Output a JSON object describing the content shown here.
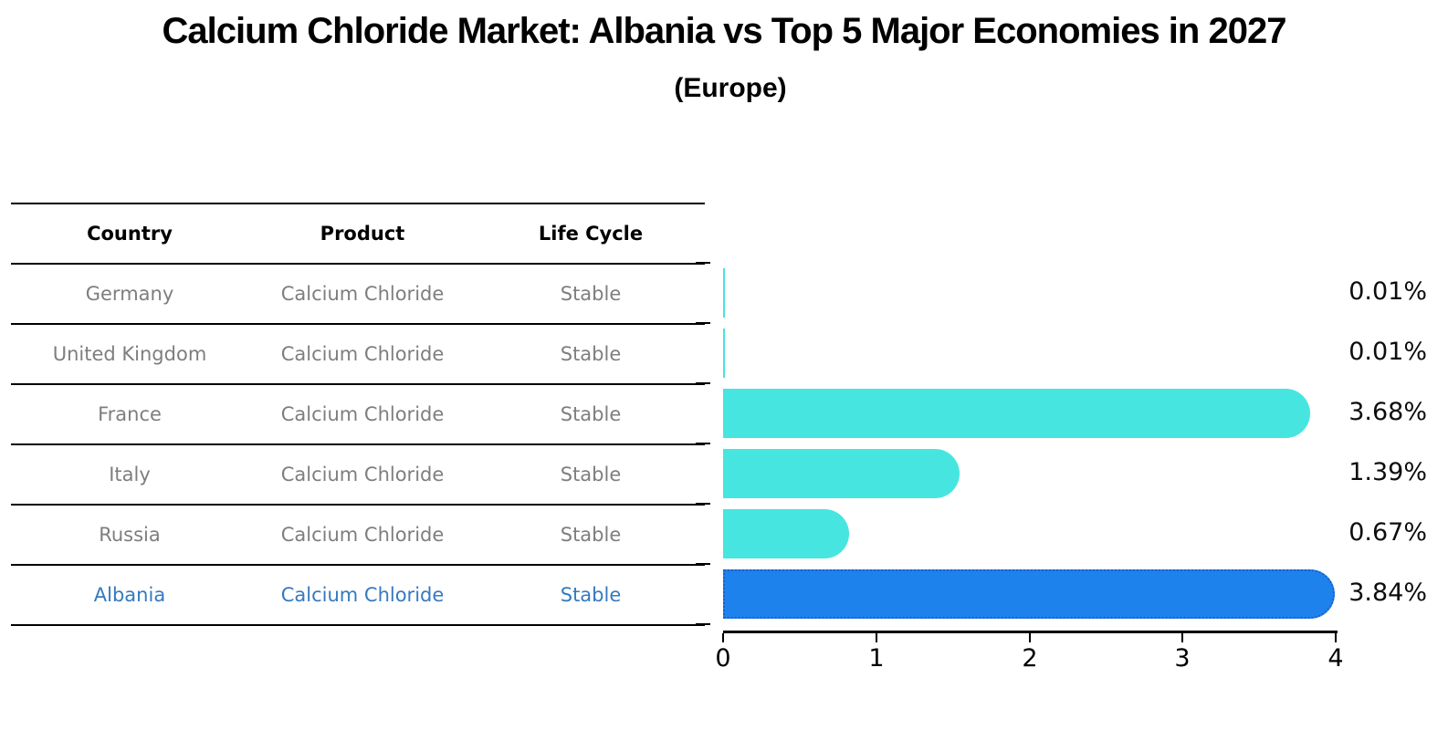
{
  "title": "Calcium Chloride Market: Albania vs Top 5 Major Economies in 2027",
  "subtitle": "(Europe)",
  "colors": {
    "bar_color": "#46e5e0",
    "highlight_bar_color": "#1e82ec",
    "highlight_bar_border": "#1a5fd0",
    "highlight_text": "#3579c0",
    "table_text": "#7e7e7e",
    "axis_text": "#000000"
  },
  "table": {
    "headers": [
      "Country",
      "Product",
      "Life Cycle"
    ],
    "rows": [
      {
        "country": "Germany",
        "product": "Calcium Chloride",
        "life_cycle": "Stable",
        "highlight": false
      },
      {
        "country": "United Kingdom",
        "product": "Calcium Chloride",
        "life_cycle": "Stable",
        "highlight": false
      },
      {
        "country": "France",
        "product": "Calcium Chloride",
        "life_cycle": "Stable",
        "highlight": false
      },
      {
        "country": "Italy",
        "product": "Calcium Chloride",
        "life_cycle": "Stable",
        "highlight": false
      },
      {
        "country": "Russia",
        "product": "Calcium Chloride",
        "life_cycle": "Stable",
        "highlight": false
      },
      {
        "country": "Albania",
        "product": "Calcium Chloride",
        "life_cycle": "Stable",
        "highlight": true
      }
    ]
  },
  "chart_data": {
    "type": "bar",
    "orientation": "horizontal",
    "categories": [
      "Germany",
      "United Kingdom",
      "France",
      "Italy",
      "Russia",
      "Albania"
    ],
    "values": [
      0.01,
      0.01,
      3.68,
      1.39,
      0.67,
      3.84
    ],
    "value_labels": [
      "0.01%",
      "0.01%",
      "3.68%",
      "1.39%",
      "0.67%",
      "3.84%"
    ],
    "highlight_index": 5,
    "xlim": [
      0,
      4
    ],
    "xtick_labels": [
      "0",
      "1",
      "2",
      "3",
      "4"
    ],
    "grid": "off",
    "legend": "none",
    "unit": "percent"
  }
}
